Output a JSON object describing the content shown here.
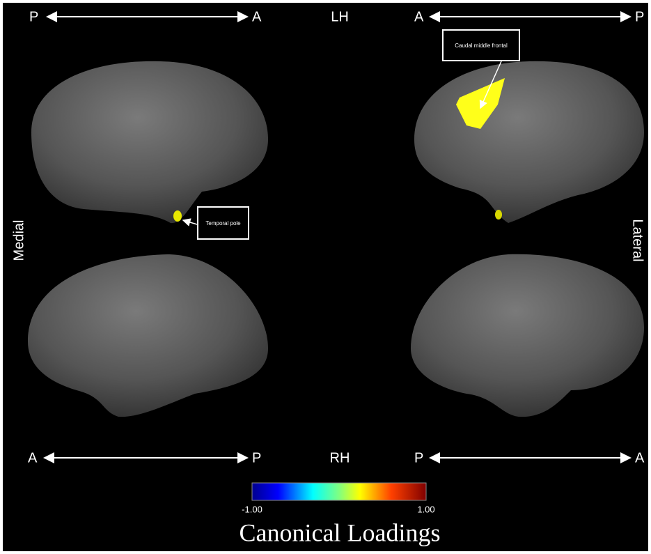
{
  "top": {
    "left_axis": [
      "P",
      "A"
    ],
    "hemisphere": "LH",
    "right_axis": [
      "A",
      "P"
    ]
  },
  "side_labels": {
    "left": "Medial",
    "right": "Lateral"
  },
  "bottom": {
    "left_axis": [
      "A",
      "P"
    ],
    "hemisphere": "RH",
    "right_axis": [
      "P",
      "A"
    ]
  },
  "callouts": {
    "upper_right": "Caudal middle frontal",
    "upper_left": "Temporal pole"
  },
  "colorbar": {
    "min_label": "-1.00",
    "max_label": "1.00",
    "title": "Canonical Loadings"
  }
}
